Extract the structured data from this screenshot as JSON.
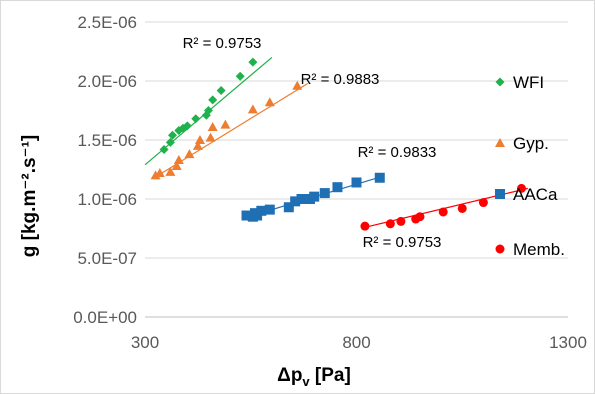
{
  "chart_data": {
    "type": "scatter",
    "title": "",
    "xlabel": {
      "main": "Δp",
      "sub": "v",
      "rest": " [Pa]"
    },
    "ylabel": "g [kg.m⁻².s⁻¹]",
    "xlim": [
      300,
      1300
    ],
    "ylim": [
      0,
      2.5e-06
    ],
    "x_ticks": [
      300,
      800,
      1300
    ],
    "x_tick_labels": [
      "300",
      "800",
      "1300"
    ],
    "y_ticks": [
      0,
      5e-07,
      1e-06,
      1.5e-06,
      2e-06,
      2.5e-06
    ],
    "y_tick_labels": [
      "0.0E+00",
      "5.0E-07",
      "1.0E-06",
      "1.5E-06",
      "2.0E-06",
      "2.5E-06"
    ],
    "grid": {
      "horizontal": true,
      "vertical": false
    },
    "legend_position": "right",
    "series": [
      {
        "name": "WFI",
        "marker": "diamond",
        "color": "#21b14c",
        "r2_label": "R² = 0.9753",
        "trendline": {
          "x": [
            300,
            600
          ],
          "y": [
            1.29e-06,
            2.2e-06
          ]
        },
        "x": [
          345,
          360,
          365,
          380,
          390,
          400,
          420,
          445,
          450,
          460,
          480,
          525,
          555
        ],
        "y": [
          1.42e-06,
          1.48e-06,
          1.54e-06,
          1.58e-06,
          1.6e-06,
          1.62e-06,
          1.68e-06,
          1.71e-06,
          1.75e-06,
          1.84e-06,
          1.92e-06,
          2.04e-06,
          2.16e-06
        ]
      },
      {
        "name": "Gyp.",
        "marker": "triangle",
        "color": "#ed7d31",
        "r2_label": "R² = 0.9883",
        "trendline": {
          "x": [
            322,
            685
          ],
          "y": [
            1.18e-06,
            1.98e-06
          ]
        },
        "x": [
          325,
          335,
          360,
          375,
          380,
          405,
          425,
          430,
          455,
          460,
          490,
          555,
          595,
          660
        ],
        "y": [
          1.2e-06,
          1.22e-06,
          1.23e-06,
          1.28e-06,
          1.33e-06,
          1.38e-06,
          1.45e-06,
          1.5e-06,
          1.52e-06,
          1.61e-06,
          1.63e-06,
          1.76e-06,
          1.82e-06,
          1.96e-06
        ]
      },
      {
        "name": "AACa",
        "marker": "square",
        "color": "#1f6fb5",
        "r2_label": "R² = 0.9833",
        "trendline": {
          "x": [
            535,
            860
          ],
          "y": [
            8.4e-07,
            1.19e-06
          ]
        },
        "x": [
          540,
          555,
          560,
          565,
          575,
          595,
          640,
          655,
          670,
          690,
          700,
          725,
          755,
          800,
          855
        ],
        "y": [
          8.6e-07,
          8.5e-07,
          8.8e-07,
          8.6e-07,
          9e-07,
          9.1e-07,
          9.3e-07,
          9.8e-07,
          1e-06,
          1e-06,
          1.02e-06,
          1.05e-06,
          1.1e-06,
          1.14e-06,
          1.18e-06
        ]
      },
      {
        "name": "Memb.",
        "marker": "circle",
        "color": "#ff0000",
        "r2_label": "R² = 0.9753",
        "trendline": {
          "x": [
            820,
            1205
          ],
          "y": [
            7.6e-07,
            1.09e-06
          ]
        },
        "x": [
          820,
          880,
          905,
          940,
          950,
          1005,
          1050,
          1100,
          1190
        ],
        "y": [
          7.7e-07,
          7.9e-07,
          8.1e-07,
          8.3e-07,
          8.5e-07,
          8.9e-07,
          9.2e-07,
          9.7e-07,
          1.09e-06
        ]
      }
    ]
  }
}
